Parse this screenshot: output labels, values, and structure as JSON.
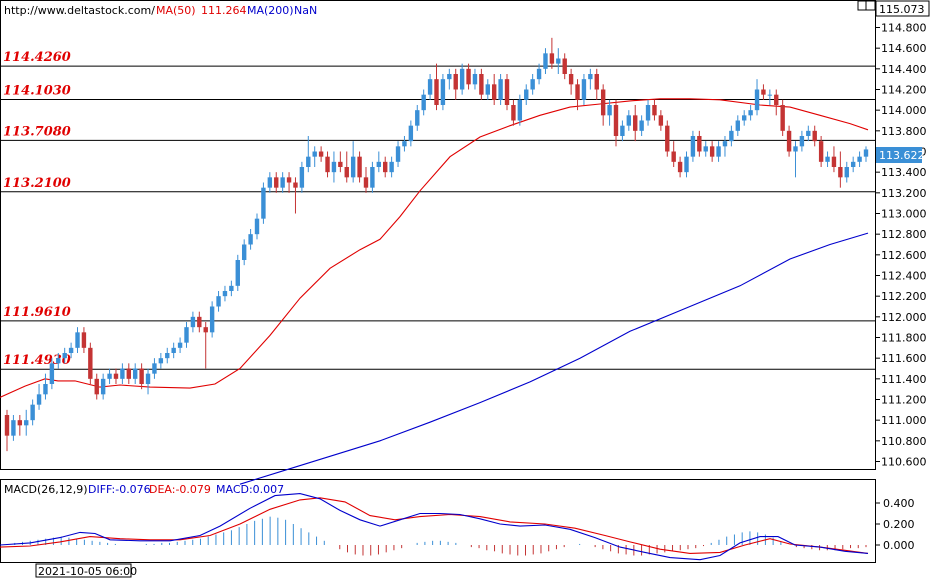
{
  "header": {
    "url": "http://www.deltastock.com/",
    "ma50_label": "MA(50)",
    "ma50_value": "111.264",
    "ma200_label": "MA(200)",
    "ma200_value": "NaN"
  },
  "top_price": "115.073",
  "current_price": "113.622",
  "colors": {
    "bull": "#3a8fd6",
    "bear": "#c43434",
    "ma50": "#e00000",
    "ma200": "#0000cc",
    "level_text": "#e00000",
    "current_box": "#3a8fd6"
  },
  "chart_data": {
    "type": "candlestick",
    "price_axis": {
      "ylim": [
        110.4,
        115.1
      ],
      "ticks": [
        "114.800",
        "114.600",
        "114.400",
        "114.200",
        "114.000",
        "113.800",
        "113.600",
        "113.400",
        "113.200",
        "113.000",
        "112.800",
        "112.600",
        "112.400",
        "112.200",
        "112.000",
        "111.800",
        "111.600",
        "111.400",
        "111.200",
        "111.000",
        "110.800",
        "110.600"
      ]
    },
    "levels": [
      "114.4260",
      "114.1030",
      "113.7080",
      "113.2100",
      "111.9610",
      "111.4930"
    ],
    "ma50": [
      [
        0,
        111.22
      ],
      [
        25,
        111.33
      ],
      [
        45,
        111.4
      ],
      [
        58,
        111.38
      ],
      [
        75,
        111.38
      ],
      [
        100,
        111.32
      ],
      [
        120,
        111.34
      ],
      [
        150,
        111.32
      ],
      [
        190,
        111.31
      ],
      [
        215,
        111.35
      ],
      [
        240,
        111.5
      ],
      [
        270,
        111.82
      ],
      [
        300,
        112.18
      ],
      [
        330,
        112.47
      ],
      [
        360,
        112.65
      ],
      [
        380,
        112.75
      ],
      [
        400,
        112.97
      ],
      [
        420,
        113.22
      ],
      [
        450,
        113.55
      ],
      [
        480,
        113.74
      ],
      [
        510,
        113.85
      ],
      [
        540,
        113.95
      ],
      [
        570,
        114.03
      ],
      [
        600,
        114.06
      ],
      [
        630,
        114.09
      ],
      [
        660,
        114.11
      ],
      [
        690,
        114.11
      ],
      [
        720,
        114.1
      ],
      [
        760,
        114.05
      ],
      [
        790,
        114.03
      ],
      [
        820,
        113.95
      ],
      [
        850,
        113.87
      ],
      [
        868,
        113.81
      ]
    ],
    "ma200": [
      [
        240,
        110.38
      ],
      [
        290,
        110.53
      ],
      [
        330,
        110.65
      ],
      [
        380,
        110.8
      ],
      [
        430,
        110.98
      ],
      [
        480,
        111.17
      ],
      [
        530,
        111.37
      ],
      [
        580,
        111.6
      ],
      [
        630,
        111.86
      ],
      [
        680,
        112.06
      ],
      [
        740,
        112.3
      ],
      [
        790,
        112.56
      ],
      [
        830,
        112.7
      ],
      [
        868,
        112.81
      ]
    ],
    "candles": [
      [
        111.05,
        111.1,
        110.7,
        110.85
      ],
      [
        110.85,
        111.05,
        110.8,
        111.0
      ],
      [
        111.0,
        111.05,
        110.85,
        110.95
      ],
      [
        110.95,
        111.1,
        110.85,
        111.0
      ],
      [
        111.0,
        111.2,
        110.95,
        111.15
      ],
      [
        111.15,
        111.35,
        111.1,
        111.25
      ],
      [
        111.25,
        111.45,
        111.2,
        111.35
      ],
      [
        111.35,
        111.6,
        111.3,
        111.55
      ],
      [
        111.55,
        111.65,
        111.5,
        111.6
      ],
      [
        111.6,
        111.7,
        111.55,
        111.65
      ],
      [
        111.65,
        111.75,
        111.6,
        111.7
      ],
      [
        111.7,
        111.9,
        111.65,
        111.85
      ],
      [
        111.85,
        111.9,
        111.65,
        111.7
      ],
      [
        111.7,
        111.75,
        111.35,
        111.4
      ],
      [
        111.4,
        111.45,
        111.2,
        111.25
      ],
      [
        111.25,
        111.45,
        111.2,
        111.4
      ],
      [
        111.4,
        111.5,
        111.35,
        111.45
      ],
      [
        111.45,
        111.5,
        111.35,
        111.4
      ],
      [
        111.4,
        111.55,
        111.35,
        111.5
      ],
      [
        111.5,
        111.55,
        111.35,
        111.4
      ],
      [
        111.4,
        111.55,
        111.35,
        111.5
      ],
      [
        111.5,
        111.55,
        111.3,
        111.35
      ],
      [
        111.35,
        111.5,
        111.25,
        111.45
      ],
      [
        111.45,
        111.6,
        111.4,
        111.55
      ],
      [
        111.55,
        111.65,
        111.5,
        111.6
      ],
      [
        111.6,
        111.7,
        111.55,
        111.65
      ],
      [
        111.65,
        111.75,
        111.6,
        111.7
      ],
      [
        111.7,
        111.8,
        111.65,
        111.75
      ],
      [
        111.75,
        111.95,
        111.7,
        111.9
      ],
      [
        111.9,
        112.05,
        111.85,
        112.0
      ],
      [
        112.0,
        112.05,
        111.85,
        111.9
      ],
      [
        111.9,
        111.95,
        111.5,
        111.85
      ],
      [
        111.85,
        112.15,
        111.8,
        112.1
      ],
      [
        112.1,
        112.25,
        112.05,
        112.2
      ],
      [
        112.2,
        112.3,
        112.15,
        112.25
      ],
      [
        112.25,
        112.35,
        112.2,
        112.3
      ],
      [
        112.3,
        112.6,
        112.25,
        112.55
      ],
      [
        112.55,
        112.75,
        112.5,
        112.7
      ],
      [
        112.7,
        112.85,
        112.65,
        112.8
      ],
      [
        112.8,
        113.0,
        112.75,
        112.95
      ],
      [
        112.95,
        113.3,
        112.9,
        113.25
      ],
      [
        113.25,
        113.4,
        113.2,
        113.35
      ],
      [
        113.35,
        113.4,
        113.2,
        113.25
      ],
      [
        113.25,
        113.4,
        113.2,
        113.35
      ],
      [
        113.35,
        113.4,
        113.2,
        113.3
      ],
      [
        113.3,
        113.35,
        113.0,
        113.25
      ],
      [
        113.25,
        113.5,
        113.2,
        113.45
      ],
      [
        113.45,
        113.75,
        113.4,
        113.55
      ],
      [
        113.55,
        113.65,
        113.45,
        113.6
      ],
      [
        113.6,
        113.65,
        113.5,
        113.55
      ],
      [
        113.55,
        113.6,
        113.35,
        113.4
      ],
      [
        113.4,
        113.6,
        113.3,
        113.5
      ],
      [
        113.5,
        113.6,
        113.4,
        113.45
      ],
      [
        113.45,
        113.6,
        113.3,
        113.35
      ],
      [
        113.35,
        113.7,
        113.3,
        113.55
      ],
      [
        113.55,
        113.6,
        113.3,
        113.35
      ],
      [
        113.35,
        113.45,
        113.2,
        113.25
      ],
      [
        113.25,
        113.5,
        113.2,
        113.45
      ],
      [
        113.45,
        113.6,
        113.4,
        113.5
      ],
      [
        113.5,
        113.55,
        113.35,
        113.4
      ],
      [
        113.4,
        113.55,
        113.35,
        113.5
      ],
      [
        113.5,
        113.7,
        113.45,
        113.65
      ],
      [
        113.65,
        113.75,
        113.6,
        113.7
      ],
      [
        113.7,
        113.9,
        113.65,
        113.85
      ],
      [
        113.85,
        114.05,
        113.8,
        114.0
      ],
      [
        114.0,
        114.2,
        113.95,
        114.15
      ],
      [
        114.15,
        114.35,
        114.1,
        114.3
      ],
      [
        114.3,
        114.45,
        114.0,
        114.05
      ],
      [
        114.05,
        114.35,
        114.0,
        114.3
      ],
      [
        114.3,
        114.4,
        114.2,
        114.35
      ],
      [
        114.35,
        114.4,
        114.1,
        114.2
      ],
      [
        114.2,
        114.45,
        114.15,
        114.4
      ],
      [
        114.4,
        114.45,
        114.2,
        114.25
      ],
      [
        114.25,
        114.4,
        114.2,
        114.35
      ],
      [
        114.35,
        114.4,
        114.1,
        114.15
      ],
      [
        114.15,
        114.3,
        114.1,
        114.25
      ],
      [
        114.25,
        114.35,
        114.05,
        114.1
      ],
      [
        114.1,
        114.35,
        114.05,
        114.3
      ],
      [
        114.3,
        114.35,
        114.0,
        114.05
      ],
      [
        114.05,
        114.1,
        113.85,
        113.9
      ],
      [
        113.9,
        114.15,
        113.85,
        114.1
      ],
      [
        114.1,
        114.25,
        114.05,
        114.2
      ],
      [
        114.2,
        114.35,
        114.15,
        114.3
      ],
      [
        114.3,
        114.45,
        114.25,
        114.4
      ],
      [
        114.4,
        114.6,
        114.35,
        114.55
      ],
      [
        114.55,
        114.7,
        114.4,
        114.45
      ],
      [
        114.45,
        114.6,
        114.35,
        114.5
      ],
      [
        114.5,
        114.55,
        114.3,
        114.35
      ],
      [
        114.35,
        114.4,
        114.15,
        114.25
      ],
      [
        114.25,
        114.3,
        114.0,
        114.1
      ],
      [
        114.1,
        114.35,
        114.05,
        114.3
      ],
      [
        114.3,
        114.4,
        114.2,
        114.35
      ],
      [
        114.35,
        114.4,
        114.1,
        114.2
      ],
      [
        114.2,
        114.25,
        113.85,
        113.95
      ],
      [
        113.95,
        114.1,
        113.85,
        114.05
      ],
      [
        114.05,
        114.1,
        113.65,
        113.75
      ],
      [
        113.75,
        113.9,
        113.7,
        113.85
      ],
      [
        113.85,
        114.0,
        113.8,
        113.95
      ],
      [
        113.95,
        114.05,
        113.7,
        113.8
      ],
      [
        113.8,
        113.95,
        113.75,
        113.9
      ],
      [
        113.9,
        114.1,
        113.85,
        114.05
      ],
      [
        114.05,
        114.1,
        113.9,
        113.95
      ],
      [
        113.95,
        114.0,
        113.8,
        113.85
      ],
      [
        113.85,
        113.9,
        113.55,
        113.6
      ],
      [
        113.6,
        113.7,
        113.45,
        113.5
      ],
      [
        113.5,
        113.55,
        113.35,
        113.4
      ],
      [
        113.4,
        113.6,
        113.35,
        113.55
      ],
      [
        113.55,
        113.8,
        113.5,
        113.75
      ],
      [
        113.75,
        113.8,
        113.55,
        113.6
      ],
      [
        113.6,
        113.7,
        113.55,
        113.65
      ],
      [
        113.65,
        113.7,
        113.5,
        113.55
      ],
      [
        113.55,
        113.7,
        113.5,
        113.65
      ],
      [
        113.65,
        113.75,
        113.55,
        113.7
      ],
      [
        113.7,
        113.85,
        113.65,
        113.8
      ],
      [
        113.8,
        113.95,
        113.75,
        113.9
      ],
      [
        113.9,
        114.0,
        113.85,
        113.95
      ],
      [
        113.95,
        114.05,
        113.9,
        114.0
      ],
      [
        114.0,
        114.3,
        113.95,
        114.2
      ],
      [
        114.2,
        114.25,
        114.1,
        114.15
      ],
      [
        114.15,
        114.2,
        114.05,
        114.15
      ],
      [
        114.15,
        114.2,
        113.95,
        114.05
      ],
      [
        114.05,
        114.1,
        113.75,
        113.8
      ],
      [
        113.8,
        113.85,
        113.55,
        113.6
      ],
      [
        113.6,
        113.7,
        113.35,
        113.65
      ],
      [
        113.65,
        113.8,
        113.6,
        113.75
      ],
      [
        113.75,
        113.85,
        113.7,
        113.8
      ],
      [
        113.8,
        113.85,
        113.65,
        113.7
      ],
      [
        113.7,
        113.75,
        113.45,
        113.5
      ],
      [
        113.5,
        113.6,
        113.45,
        113.55
      ],
      [
        113.55,
        113.65,
        113.4,
        113.45
      ],
      [
        113.45,
        113.6,
        113.25,
        113.35
      ],
      [
        113.35,
        113.5,
        113.3,
        113.45
      ],
      [
        113.45,
        113.55,
        113.4,
        113.5
      ],
      [
        113.5,
        113.6,
        113.45,
        113.55
      ],
      [
        113.55,
        113.65,
        113.5,
        113.62
      ]
    ],
    "macd": {
      "label": "MACD(26,12,9)",
      "diff_label": "DIFF:-0.076",
      "dea_label": "DEA:-0.079",
      "macd_label": "MACD:0.007",
      "ylim": [
        -0.15,
        0.5
      ],
      "ticks": [
        "0.400",
        "0.200",
        "0.000"
      ],
      "diff": [
        [
          0,
          0.0
        ],
        [
          30,
          0.02
        ],
        [
          60,
          0.07
        ],
        [
          80,
          0.12
        ],
        [
          95,
          0.11
        ],
        [
          110,
          0.05
        ],
        [
          140,
          0.04
        ],
        [
          170,
          0.04
        ],
        [
          200,
          0.09
        ],
        [
          220,
          0.18
        ],
        [
          250,
          0.35
        ],
        [
          275,
          0.47
        ],
        [
          300,
          0.49
        ],
        [
          320,
          0.44
        ],
        [
          340,
          0.33
        ],
        [
          360,
          0.24
        ],
        [
          380,
          0.18
        ],
        [
          400,
          0.24
        ],
        [
          420,
          0.3
        ],
        [
          440,
          0.3
        ],
        [
          460,
          0.29
        ],
        [
          480,
          0.25
        ],
        [
          500,
          0.2
        ],
        [
          520,
          0.18
        ],
        [
          545,
          0.19
        ],
        [
          570,
          0.15
        ],
        [
          595,
          0.07
        ],
        [
          620,
          -0.02
        ],
        [
          645,
          -0.07
        ],
        [
          670,
          -0.12
        ],
        [
          700,
          -0.14
        ],
        [
          720,
          -0.1
        ],
        [
          740,
          0.02
        ],
        [
          760,
          0.08
        ],
        [
          778,
          0.08
        ],
        [
          795,
          0.0
        ],
        [
          820,
          -0.02
        ],
        [
          845,
          -0.06
        ],
        [
          868,
          -0.08
        ]
      ],
      "dea": [
        [
          0,
          -0.02
        ],
        [
          30,
          -0.01
        ],
        [
          60,
          0.03
        ],
        [
          90,
          0.08
        ],
        [
          120,
          0.06
        ],
        [
          150,
          0.05
        ],
        [
          180,
          0.05
        ],
        [
          210,
          0.09
        ],
        [
          240,
          0.2
        ],
        [
          270,
          0.34
        ],
        [
          300,
          0.43
        ],
        [
          320,
          0.45
        ],
        [
          345,
          0.41
        ],
        [
          370,
          0.28
        ],
        [
          395,
          0.24
        ],
        [
          420,
          0.27
        ],
        [
          450,
          0.29
        ],
        [
          480,
          0.27
        ],
        [
          510,
          0.22
        ],
        [
          545,
          0.2
        ],
        [
          575,
          0.16
        ],
        [
          605,
          0.09
        ],
        [
          630,
          0.03
        ],
        [
          660,
          -0.04
        ],
        [
          690,
          -0.08
        ],
        [
          720,
          -0.07
        ],
        [
          745,
          0.0
        ],
        [
          770,
          0.06
        ],
        [
          790,
          0.01
        ],
        [
          820,
          -0.02
        ],
        [
          845,
          -0.05
        ],
        [
          868,
          -0.08
        ]
      ],
      "hist": [
        0.01,
        0.02,
        0.03,
        0.04,
        0.05,
        0.06,
        0.07,
        0.08,
        0.07,
        0.06,
        0.05,
        0.04,
        0.03,
        0.02,
        0.01,
        0.0,
        0.0,
        0.0,
        0.01,
        0.01,
        0.02,
        0.02,
        0.03,
        0.04,
        0.05,
        0.06,
        0.08,
        0.1,
        0.12,
        0.14,
        0.17,
        0.2,
        0.23,
        0.25,
        0.27,
        0.26,
        0.24,
        0.2,
        0.16,
        0.12,
        0.08,
        0.04,
        0.0,
        -0.04,
        -0.07,
        -0.09,
        -0.1,
        -0.1,
        -0.09,
        -0.07,
        -0.05,
        -0.03,
        0.0,
        0.02,
        0.03,
        0.04,
        0.04,
        0.03,
        0.02,
        0.0,
        -0.02,
        -0.03,
        -0.05,
        -0.06,
        -0.08,
        -0.09,
        -0.1,
        -0.1,
        -0.09,
        -0.08,
        -0.06,
        -0.04,
        -0.02,
        0.0,
        0.01,
        0.0,
        -0.02,
        -0.04,
        -0.06,
        -0.08,
        -0.09,
        -0.1,
        -0.1,
        -0.09,
        -0.08,
        -0.07,
        -0.06,
        -0.05,
        -0.04,
        -0.03,
        -0.01,
        0.02,
        0.05,
        0.08,
        0.1,
        0.12,
        0.13,
        0.12,
        0.1,
        0.07,
        0.03,
        0.0,
        -0.02,
        -0.03,
        -0.04,
        -0.05,
        -0.05,
        -0.05,
        -0.04,
        -0.03,
        -0.03,
        -0.02
      ]
    },
    "x_label": "2021-10-05 06:00"
  }
}
